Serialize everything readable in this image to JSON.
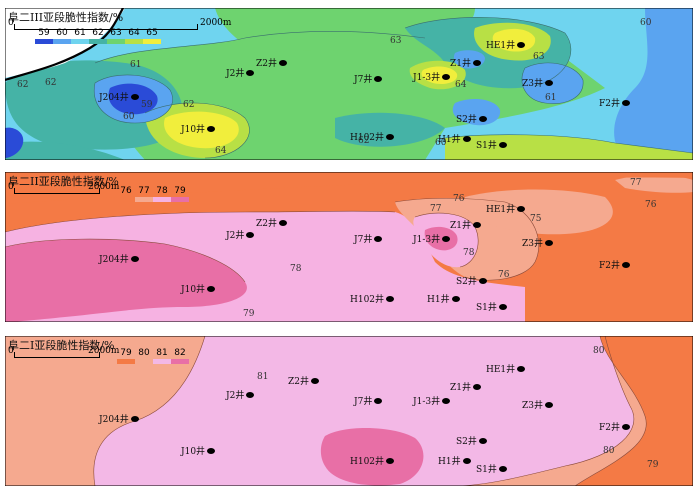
{
  "scale": {
    "zero": "0",
    "distance": "2000m"
  },
  "panels": [
    {
      "title": "阜二III亚段脆性指数/%",
      "legend": [
        {
          "value": "59",
          "color": "#2a4bd7"
        },
        {
          "value": "60",
          "color": "#5aa4f0"
        },
        {
          "value": "61",
          "color": "#6fd4ef"
        },
        {
          "value": "62",
          "color": "#45b3a6"
        },
        {
          "value": "63",
          "color": "#6ed36f"
        },
        {
          "value": "64",
          "color": "#b8e045"
        },
        {
          "value": "65",
          "color": "#f1ee3c"
        }
      ],
      "contour_labels": [
        "62",
        "61",
        "62",
        "60",
        "59",
        "64",
        "62",
        "63",
        "64",
        "60",
        "61",
        "63",
        "60",
        "62"
      ]
    },
    {
      "title": "阜二II亚段脆性指数/%",
      "legend": [
        {
          "value": "76",
          "color": "#f47a45"
        },
        {
          "value": "77",
          "color": "#f5a98f"
        },
        {
          "value": "78",
          "color": "#f6b2e2"
        },
        {
          "value": "79",
          "color": "#e86fa6"
        }
      ],
      "contour_labels": [
        "76",
        "77",
        "77",
        "75",
        "76",
        "78",
        "78",
        "76",
        "79"
      ]
    },
    {
      "title": "阜二I亚段脆性指数/%",
      "legend": [
        {
          "value": "79",
          "color": "#f47a45"
        },
        {
          "value": "80",
          "color": "#f5a98f"
        },
        {
          "value": "81",
          "color": "#f3b8e6"
        },
        {
          "value": "82",
          "color": "#e86fa6"
        }
      ],
      "contour_labels": [
        "81",
        "80",
        "80",
        "79"
      ]
    }
  ],
  "wells": [
    "Z2井",
    "J2井",
    "J7井",
    "J1-3井",
    "Z1井",
    "HE1井",
    "Z3井",
    "J204井",
    "F2井",
    "S2井",
    "J10井",
    "H102井",
    "H1井",
    "S1井"
  ]
}
